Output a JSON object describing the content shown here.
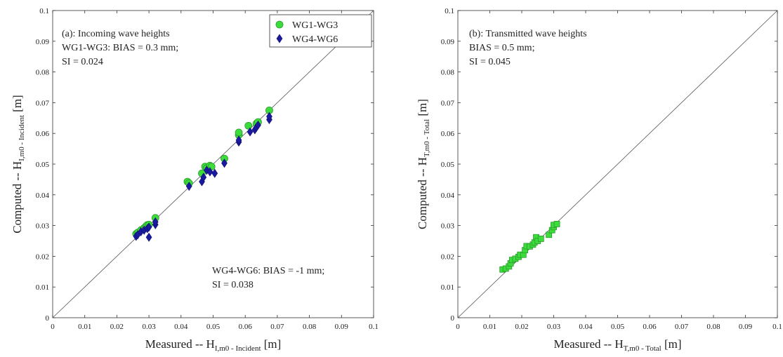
{
  "chart_data": [
    {
      "type": "scatter",
      "panel": "a",
      "xlabel": {
        "main": "Measured -- H",
        "sub": "I,m0 - Incident",
        "unit": "[m]"
      },
      "ylabel": {
        "main": "Computed -- H",
        "sub": "I,m0 - Incident",
        "unit": "[m]"
      },
      "xlim": [
        0,
        0.1
      ],
      "ylim": [
        0,
        0.1
      ],
      "ticks": [
        "0",
        "0.01",
        "0.02",
        "0.03",
        "0.04",
        "0.05",
        "0.06",
        "0.07",
        "0.08",
        "0.09",
        "0.1"
      ],
      "annotations": [
        "(a): Incoming wave heights",
        "WG1-WG3: BIAS = 0.3 mm;",
        "SI = 0.024",
        "WG4-WG6: BIAS = -1 mm;",
        "SI = 0.038"
      ],
      "legend_position": "top-right",
      "diagonal": [
        [
          0,
          0
        ],
        [
          0.1,
          0.1
        ]
      ],
      "series": [
        {
          "name": "WG1-WG3",
          "marker": "circle",
          "color": "#3ddc3d",
          "points": [
            [
              0.026,
              0.0273
            ],
            [
              0.0265,
              0.0277
            ],
            [
              0.0275,
              0.0285
            ],
            [
              0.0285,
              0.0292
            ],
            [
              0.029,
              0.0297
            ],
            [
              0.0295,
              0.0302
            ],
            [
              0.03,
              0.0303
            ],
            [
              0.032,
              0.0325
            ],
            [
              0.042,
              0.0443
            ],
            [
              0.0425,
              0.0438
            ],
            [
              0.0465,
              0.047
            ],
            [
              0.0475,
              0.0492
            ],
            [
              0.048,
              0.0487
            ],
            [
              0.049,
              0.0495
            ],
            [
              0.0495,
              0.0492
            ],
            [
              0.0535,
              0.0518
            ],
            [
              0.058,
              0.0595
            ],
            [
              0.058,
              0.0603
            ],
            [
              0.061,
              0.0625
            ],
            [
              0.0635,
              0.0632
            ],
            [
              0.064,
              0.0637
            ],
            [
              0.0675,
              0.0675
            ]
          ]
        },
        {
          "name": "WG4-WG6",
          "marker": "diamond",
          "color": "#1a1aa0",
          "points": [
            [
              0.026,
              0.0265
            ],
            [
              0.0265,
              0.027
            ],
            [
              0.0275,
              0.028
            ],
            [
              0.0285,
              0.0285
            ],
            [
              0.0295,
              0.029
            ],
            [
              0.03,
              0.0295
            ],
            [
              0.03,
              0.0262
            ],
            [
              0.032,
              0.0303
            ],
            [
              0.032,
              0.0312
            ],
            [
              0.0425,
              0.0428
            ],
            [
              0.0465,
              0.0443
            ],
            [
              0.047,
              0.0457
            ],
            [
              0.048,
              0.048
            ],
            [
              0.049,
              0.0475
            ],
            [
              0.0505,
              0.047
            ],
            [
              0.0535,
              0.0503
            ],
            [
              0.058,
              0.0572
            ],
            [
              0.058,
              0.0578
            ],
            [
              0.0615,
              0.0605
            ],
            [
              0.063,
              0.0612
            ],
            [
              0.0635,
              0.062
            ],
            [
              0.064,
              0.0627
            ],
            [
              0.0675,
              0.0645
            ],
            [
              0.0675,
              0.0655
            ]
          ]
        }
      ]
    },
    {
      "type": "scatter",
      "panel": "b",
      "xlabel": {
        "main": "Measured -- H",
        "sub": "T,m0 - Total",
        "unit": "[m]"
      },
      "ylabel": {
        "main": "Computed -- H",
        "sub": "T,m0 - Total",
        "unit": "[m]"
      },
      "xlim": [
        0,
        0.1
      ],
      "ylim": [
        0,
        0.1
      ],
      "ticks": [
        "0",
        "0.01",
        "0.02",
        "0.03",
        "0.04",
        "0.05",
        "0.06",
        "0.07",
        "0.08",
        "0.09",
        "0.1"
      ],
      "annotations": [
        "(b): Transmitted wave heights",
        "BIAS = 0.5 mm;",
        "SI = 0.045"
      ],
      "diagonal": [
        [
          0,
          0
        ],
        [
          0.1,
          0.1
        ]
      ],
      "series": [
        {
          "marker": "square",
          "color": "#3ddc3d",
          "points": [
            [
              0.014,
              0.0157
            ],
            [
              0.015,
              0.016
            ],
            [
              0.016,
              0.0167
            ],
            [
              0.0165,
              0.0177
            ],
            [
              0.017,
              0.0188
            ],
            [
              0.018,
              0.0192
            ],
            [
              0.019,
              0.0198
            ],
            [
              0.0195,
              0.0205
            ],
            [
              0.0205,
              0.0205
            ],
            [
              0.021,
              0.022
            ],
            [
              0.0215,
              0.0233
            ],
            [
              0.0225,
              0.0232
            ],
            [
              0.0235,
              0.0238
            ],
            [
              0.024,
              0.0245
            ],
            [
              0.0245,
              0.0262
            ],
            [
              0.025,
              0.025
            ],
            [
              0.026,
              0.0257
            ],
            [
              0.0285,
              0.027
            ],
            [
              0.0295,
              0.0285
            ],
            [
              0.03,
              0.0295
            ],
            [
              0.03,
              0.0302
            ],
            [
              0.031,
              0.0305
            ]
          ]
        }
      ]
    }
  ]
}
